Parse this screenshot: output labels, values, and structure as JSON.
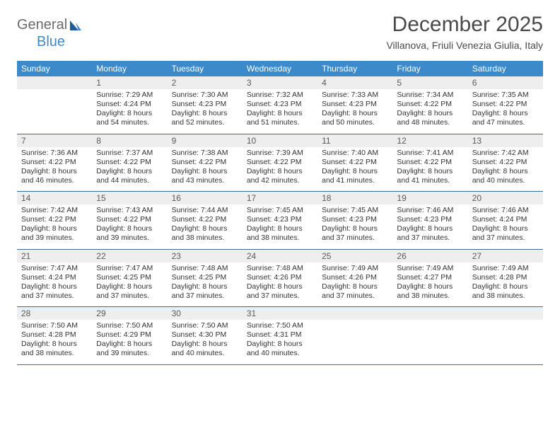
{
  "logo": {
    "text1": "General",
    "text2": "Blue"
  },
  "title": "December 2025",
  "location": "Villanova, Friuli Venezia Giulia, Italy",
  "colors": {
    "header_bg": "#3c8ac9",
    "header_text": "#ffffff",
    "daynum_bg": "#eeeeee",
    "row_border": "#3c6a99",
    "logo_general": "#6b6b6b",
    "logo_blue": "#3c8ac9",
    "title_color": "#4a4a4a",
    "body_text": "#333333",
    "page_bg": "#ffffff"
  },
  "typography": {
    "title_fontsize": 30,
    "location_fontsize": 14,
    "weekday_fontsize": 12,
    "daynum_fontsize": 12,
    "body_fontsize": 10.5,
    "logo_fontsize": 20
  },
  "weekdays": [
    "Sunday",
    "Monday",
    "Tuesday",
    "Wednesday",
    "Thursday",
    "Friday",
    "Saturday"
  ],
  "weeks": [
    [
      null,
      {
        "n": "1",
        "sunrise": "7:29 AM",
        "sunset": "4:24 PM",
        "daylight": "8 hours and 54 minutes."
      },
      {
        "n": "2",
        "sunrise": "7:30 AM",
        "sunset": "4:23 PM",
        "daylight": "8 hours and 52 minutes."
      },
      {
        "n": "3",
        "sunrise": "7:32 AM",
        "sunset": "4:23 PM",
        "daylight": "8 hours and 51 minutes."
      },
      {
        "n": "4",
        "sunrise": "7:33 AM",
        "sunset": "4:23 PM",
        "daylight": "8 hours and 50 minutes."
      },
      {
        "n": "5",
        "sunrise": "7:34 AM",
        "sunset": "4:22 PM",
        "daylight": "8 hours and 48 minutes."
      },
      {
        "n": "6",
        "sunrise": "7:35 AM",
        "sunset": "4:22 PM",
        "daylight": "8 hours and 47 minutes."
      }
    ],
    [
      {
        "n": "7",
        "sunrise": "7:36 AM",
        "sunset": "4:22 PM",
        "daylight": "8 hours and 46 minutes."
      },
      {
        "n": "8",
        "sunrise": "7:37 AM",
        "sunset": "4:22 PM",
        "daylight": "8 hours and 44 minutes."
      },
      {
        "n": "9",
        "sunrise": "7:38 AM",
        "sunset": "4:22 PM",
        "daylight": "8 hours and 43 minutes."
      },
      {
        "n": "10",
        "sunrise": "7:39 AM",
        "sunset": "4:22 PM",
        "daylight": "8 hours and 42 minutes."
      },
      {
        "n": "11",
        "sunrise": "7:40 AM",
        "sunset": "4:22 PM",
        "daylight": "8 hours and 41 minutes."
      },
      {
        "n": "12",
        "sunrise": "7:41 AM",
        "sunset": "4:22 PM",
        "daylight": "8 hours and 41 minutes."
      },
      {
        "n": "13",
        "sunrise": "7:42 AM",
        "sunset": "4:22 PM",
        "daylight": "8 hours and 40 minutes."
      }
    ],
    [
      {
        "n": "14",
        "sunrise": "7:42 AM",
        "sunset": "4:22 PM",
        "daylight": "8 hours and 39 minutes."
      },
      {
        "n": "15",
        "sunrise": "7:43 AM",
        "sunset": "4:22 PM",
        "daylight": "8 hours and 39 minutes."
      },
      {
        "n": "16",
        "sunrise": "7:44 AM",
        "sunset": "4:22 PM",
        "daylight": "8 hours and 38 minutes."
      },
      {
        "n": "17",
        "sunrise": "7:45 AM",
        "sunset": "4:23 PM",
        "daylight": "8 hours and 38 minutes."
      },
      {
        "n": "18",
        "sunrise": "7:45 AM",
        "sunset": "4:23 PM",
        "daylight": "8 hours and 37 minutes."
      },
      {
        "n": "19",
        "sunrise": "7:46 AM",
        "sunset": "4:23 PM",
        "daylight": "8 hours and 37 minutes."
      },
      {
        "n": "20",
        "sunrise": "7:46 AM",
        "sunset": "4:24 PM",
        "daylight": "8 hours and 37 minutes."
      }
    ],
    [
      {
        "n": "21",
        "sunrise": "7:47 AM",
        "sunset": "4:24 PM",
        "daylight": "8 hours and 37 minutes."
      },
      {
        "n": "22",
        "sunrise": "7:47 AM",
        "sunset": "4:25 PM",
        "daylight": "8 hours and 37 minutes."
      },
      {
        "n": "23",
        "sunrise": "7:48 AM",
        "sunset": "4:25 PM",
        "daylight": "8 hours and 37 minutes."
      },
      {
        "n": "24",
        "sunrise": "7:48 AM",
        "sunset": "4:26 PM",
        "daylight": "8 hours and 37 minutes."
      },
      {
        "n": "25",
        "sunrise": "7:49 AM",
        "sunset": "4:26 PM",
        "daylight": "8 hours and 37 minutes."
      },
      {
        "n": "26",
        "sunrise": "7:49 AM",
        "sunset": "4:27 PM",
        "daylight": "8 hours and 38 minutes."
      },
      {
        "n": "27",
        "sunrise": "7:49 AM",
        "sunset": "4:28 PM",
        "daylight": "8 hours and 38 minutes."
      }
    ],
    [
      {
        "n": "28",
        "sunrise": "7:50 AM",
        "sunset": "4:28 PM",
        "daylight": "8 hours and 38 minutes."
      },
      {
        "n": "29",
        "sunrise": "7:50 AM",
        "sunset": "4:29 PM",
        "daylight": "8 hours and 39 minutes."
      },
      {
        "n": "30",
        "sunrise": "7:50 AM",
        "sunset": "4:30 PM",
        "daylight": "8 hours and 40 minutes."
      },
      {
        "n": "31",
        "sunrise": "7:50 AM",
        "sunset": "4:31 PM",
        "daylight": "8 hours and 40 minutes."
      },
      null,
      null,
      null
    ]
  ],
  "labels": {
    "sunrise_prefix": "Sunrise: ",
    "sunset_prefix": "Sunset: ",
    "daylight_prefix": "Daylight: "
  }
}
